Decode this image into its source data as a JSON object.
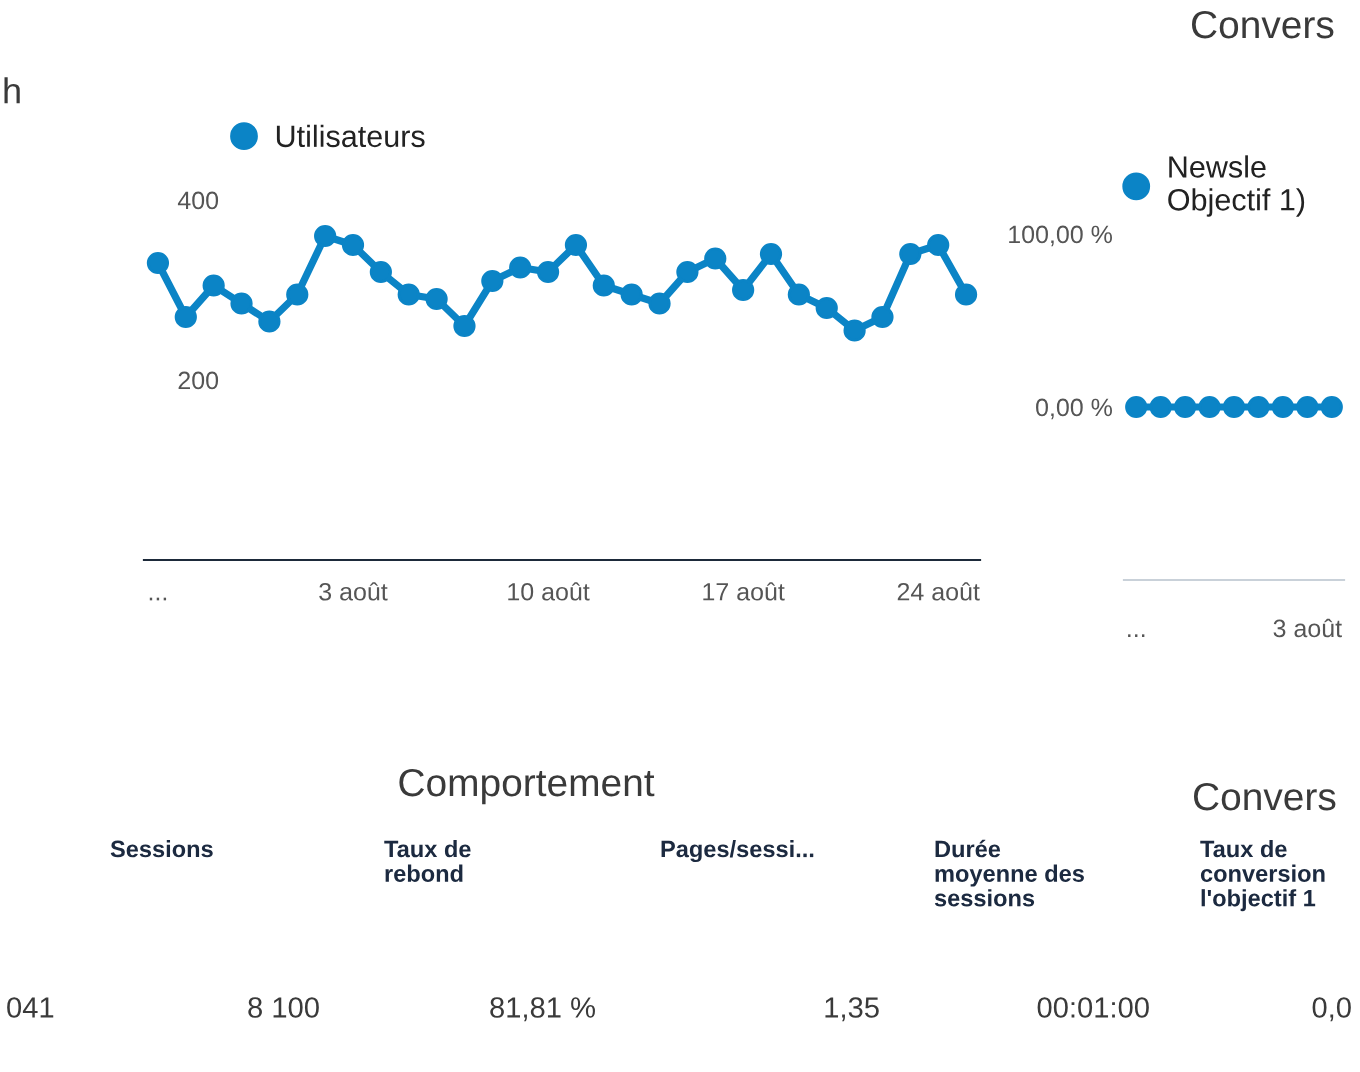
{
  "chart_data": [
    {
      "type": "line",
      "categories": [
        "...",
        null,
        null,
        null,
        null,
        null,
        null,
        "3 août",
        null,
        null,
        null,
        null,
        null,
        null,
        "10 août",
        null,
        null,
        null,
        null,
        null,
        null,
        "17 août",
        null,
        null,
        null,
        null,
        null,
        null,
        "24 août",
        null
      ],
      "series": [
        {
          "name": "Utilisateurs",
          "color": "#0b84c6",
          "values": [
            330,
            270,
            305,
            285,
            265,
            295,
            360,
            350,
            320,
            295,
            290,
            260,
            310,
            325,
            320,
            350,
            305,
            295,
            285,
            320,
            335,
            300,
            340,
            295,
            280,
            255,
            270,
            340,
            350,
            295
          ]
        }
      ],
      "ylim": [
        0,
        400
      ],
      "yticks": [
        200,
        400
      ],
      "legend": "top left",
      "marker": "circle",
      "line_style": "solid",
      "annotations": [
        "h"
      ]
    },
    {
      "type": "line",
      "title": "Convers",
      "categories": [
        "...",
        null,
        null,
        null,
        null,
        null,
        null,
        "3 août",
        null
      ],
      "series": [
        {
          "name": "Newsle\nObjectif 1)",
          "color": "#0b84c6",
          "values": [
            0,
            0,
            0,
            0,
            0,
            0,
            0,
            0,
            0
          ]
        }
      ],
      "ylim": [
        -100,
        100
      ],
      "yticks": [
        {
          "value": 0,
          "label": "0,00 %"
        },
        {
          "value": 100,
          "label": "100,00 %"
        }
      ],
      "legend": "top left",
      "marker": "circle",
      "line_style": "solid"
    },
    {
      "type": "other",
      "title": "Comportement",
      "annotations": [
        "Sessions",
        "Taux de\nrebond",
        "Pages/sessi...",
        "Durée\nmoyenne des\nsessions",
        "Convers",
        "Taux de\nconversion\nl'objectif 1",
        "041",
        "8 100",
        "81,81 %",
        "1,35",
        "00:01:00",
        "0,0"
      ]
    }
  ]
}
